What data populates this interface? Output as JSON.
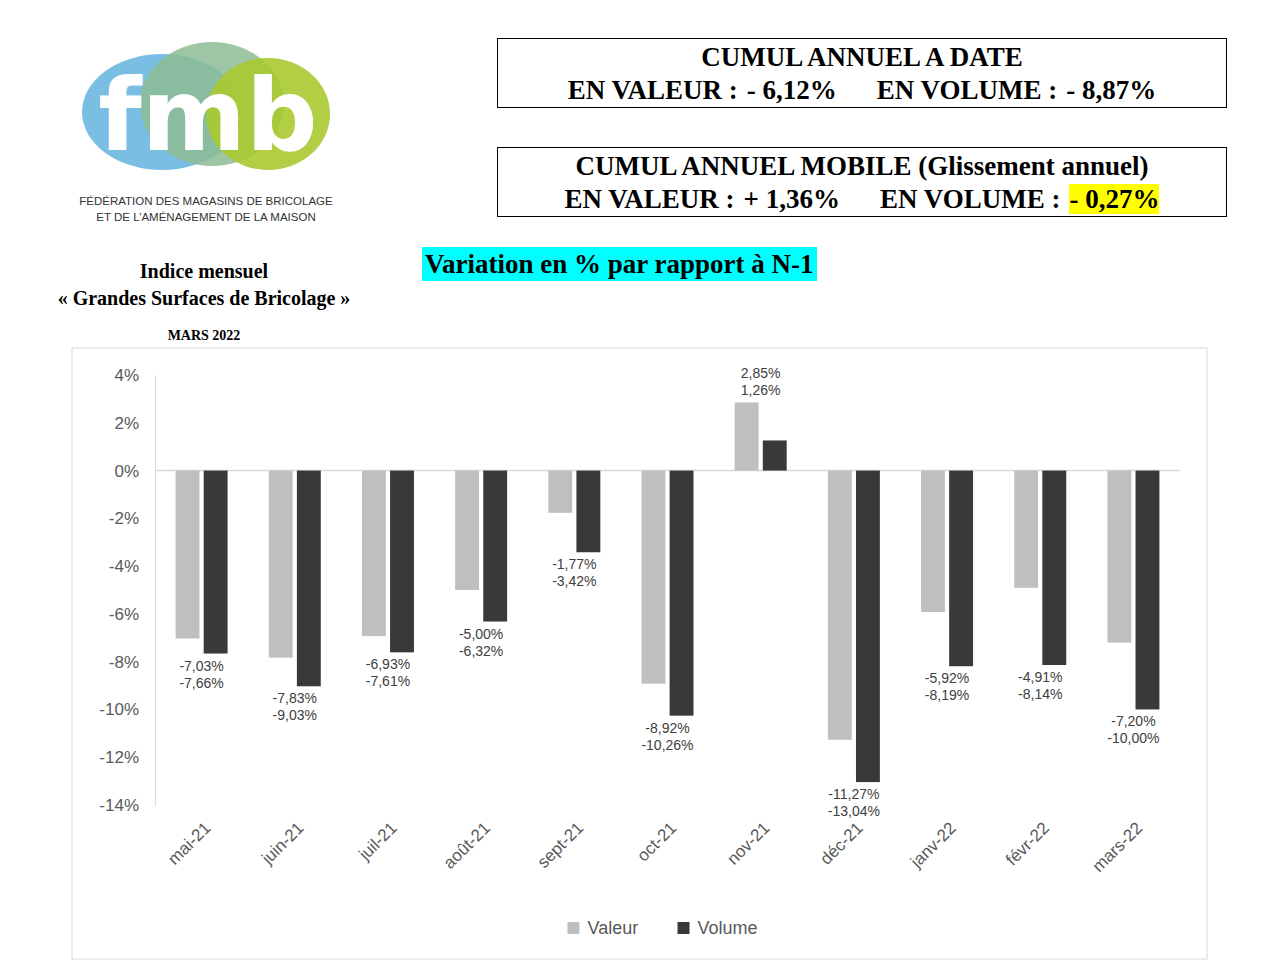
{
  "chart_data": {
    "type": "bar",
    "title": "Variation en % par rapport à N-1",
    "categories": [
      "mai-21",
      "juin-21",
      "juil-21",
      "août-21",
      "sept-21",
      "oct-21",
      "nov-21",
      "déc-21",
      "janv-22",
      "févr-22",
      "mars-22"
    ],
    "series": [
      {
        "name": "Valeur",
        "color": "#bfbfbf",
        "values": [
          -7.03,
          -7.83,
          -6.93,
          -5.0,
          -1.77,
          -8.92,
          2.85,
          -11.27,
          -5.92,
          -4.91,
          -7.2
        ],
        "value_labels": [
          "-7,03%",
          "-7,83%",
          "-6,93%",
          "-5,00%",
          "-1,77%",
          "-8,92%",
          "2,85%",
          "-11,27%",
          "-5,92%",
          "-4,91%",
          "-7,20%"
        ]
      },
      {
        "name": "Volume",
        "color": "#3b3838",
        "values": [
          -7.66,
          -9.03,
          -7.61,
          -6.32,
          -3.42,
          -10.26,
          1.26,
          -13.04,
          -8.19,
          -8.14,
          -10.0
        ],
        "value_labels": [
          "-7,66%",
          "-9,03%",
          "-7,61%",
          "-6,32%",
          "-3,42%",
          "-10,26%",
          "1,26%",
          "-13,04%",
          "-8,19%",
          "-8,14%",
          "-10,00%"
        ]
      }
    ],
    "ylim": [
      -14,
      4
    ],
    "yticks": [
      {
        "value": -14,
        "label": "-14%"
      },
      {
        "value": -12,
        "label": "-12%"
      },
      {
        "value": -10,
        "label": "-10%"
      },
      {
        "value": -8,
        "label": "-8%"
      },
      {
        "value": -6,
        "label": "-6%"
      },
      {
        "value": -4,
        "label": "-4%"
      },
      {
        "value": -2,
        "label": "-2%"
      },
      {
        "value": 0,
        "label": "0%"
      },
      {
        "value": 2,
        "label": "2%"
      },
      {
        "value": 4,
        "label": "4%"
      }
    ],
    "grid": false,
    "legend": "bottom",
    "data_labels": true
  },
  "header": {
    "logo": {
      "text": "fmb",
      "lines": [
        "FÉDÉRATION DES MAGASINS DE BRICOLAGE",
        "ET DE L’AMÉNAGEMENT DE LA MAISON"
      ]
    },
    "subtitle": [
      "Indice mensuel",
      "« Grandes Surfaces de Bricolage »",
      "MARS 2022"
    ],
    "boxes": [
      {
        "title": "CUMUL ANNUEL A DATE",
        "items": [
          {
            "label": "EN VALEUR :",
            "value": "- 6,12%"
          },
          {
            "label": "EN VOLUME :",
            "value": "- 8,87%"
          }
        ]
      },
      {
        "title": "CUMUL ANNUEL MOBILE (Glissement annuel)",
        "items": [
          {
            "label": "EN VALEUR :",
            "value": "+ 1,36%"
          },
          {
            "label": "EN VOLUME :",
            "value": "- 0,27%"
          }
        ]
      }
    ]
  }
}
